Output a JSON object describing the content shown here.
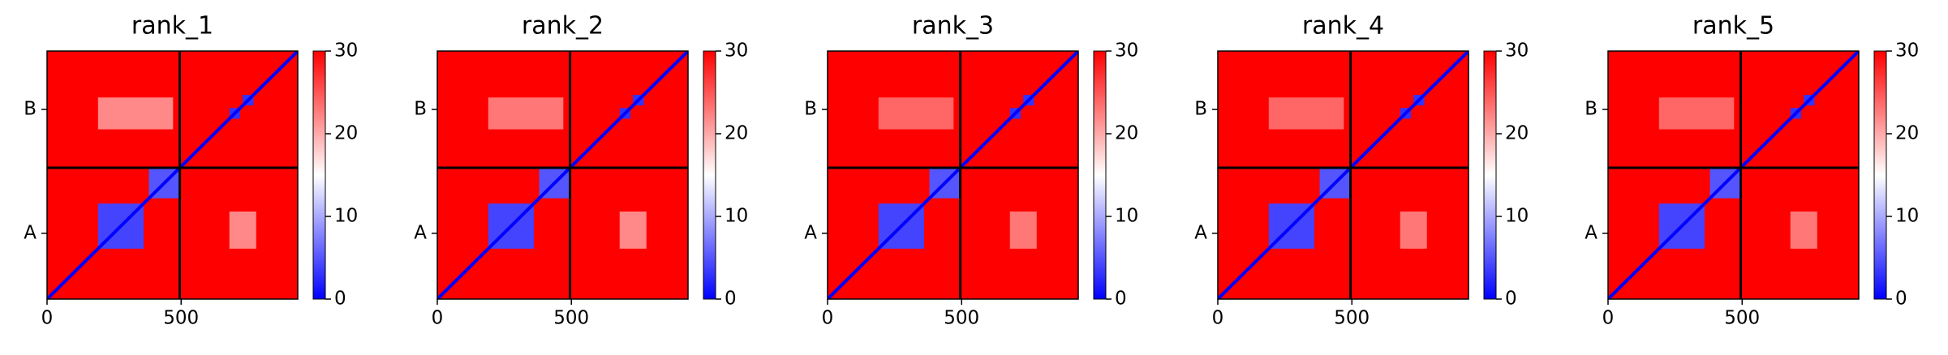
{
  "chart_data": [
    {
      "type": "heatmap",
      "title": "rank_1",
      "xlim": [
        0,
        935
      ],
      "ylim": [
        935,
        0
      ],
      "xticks": [
        0,
        500
      ],
      "yticks": [
        {
          "value": 248,
          "label": "A"
        },
        {
          "value": 715,
          "label": "B"
        }
      ],
      "clim": [
        0,
        30
      ],
      "cticks": [
        0,
        10,
        20,
        30
      ],
      "colors": [
        "#0000ff",
        "#ffffff",
        "#ff0000"
      ],
      "background_value": 30,
      "diagonal_value": 0,
      "chain_breaks": [
        495
      ],
      "blocks": [
        {
          "x": [
            190,
            360
          ],
          "y": [
            190,
            360
          ],
          "value": 4
        },
        {
          "x": [
            380,
            495
          ],
          "y": [
            380,
            495
          ],
          "value": 5
        },
        {
          "x": [
            190,
            470
          ],
          "y": [
            640,
            760
          ],
          "value": 22
        },
        {
          "x": [
            680,
            780
          ],
          "y": [
            190,
            330
          ],
          "value": 22
        },
        {
          "x": [
            680,
            720
          ],
          "y": [
            680,
            720
          ],
          "value": 3
        },
        {
          "x": [
            730,
            770
          ],
          "y": [
            730,
            770
          ],
          "value": 3
        }
      ]
    },
    {
      "type": "heatmap",
      "title": "rank_2",
      "xlim": [
        0,
        935
      ],
      "ylim": [
        935,
        0
      ],
      "xticks": [
        0,
        500
      ],
      "yticks": [
        {
          "value": 248,
          "label": "A"
        },
        {
          "value": 715,
          "label": "B"
        }
      ],
      "clim": [
        0,
        30
      ],
      "cticks": [
        0,
        10,
        20,
        30
      ],
      "colors": [
        "#0000ff",
        "#ffffff",
        "#ff0000"
      ],
      "background_value": 30,
      "diagonal_value": 0,
      "chain_breaks": [
        495
      ],
      "blocks": [
        {
          "x": [
            190,
            360
          ],
          "y": [
            190,
            360
          ],
          "value": 4
        },
        {
          "x": [
            380,
            495
          ],
          "y": [
            380,
            495
          ],
          "value": 5
        },
        {
          "x": [
            190,
            470
          ],
          "y": [
            640,
            760
          ],
          "value": 23
        },
        {
          "x": [
            680,
            780
          ],
          "y": [
            190,
            330
          ],
          "value": 22
        },
        {
          "x": [
            680,
            720
          ],
          "y": [
            680,
            720
          ],
          "value": 3
        },
        {
          "x": [
            730,
            770
          ],
          "y": [
            730,
            770
          ],
          "value": 3
        }
      ]
    },
    {
      "type": "heatmap",
      "title": "rank_3",
      "xlim": [
        0,
        935
      ],
      "ylim": [
        935,
        0
      ],
      "xticks": [
        0,
        500
      ],
      "yticks": [
        {
          "value": 248,
          "label": "A"
        },
        {
          "value": 715,
          "label": "B"
        }
      ],
      "clim": [
        0,
        30
      ],
      "cticks": [
        0,
        10,
        20,
        30
      ],
      "colors": [
        "#0000ff",
        "#ffffff",
        "#ff0000"
      ],
      "background_value": 30,
      "diagonal_value": 0,
      "chain_breaks": [
        495
      ],
      "blocks": [
        {
          "x": [
            190,
            360
          ],
          "y": [
            190,
            360
          ],
          "value": 4
        },
        {
          "x": [
            380,
            495
          ],
          "y": [
            380,
            495
          ],
          "value": 5
        },
        {
          "x": [
            190,
            470
          ],
          "y": [
            640,
            760
          ],
          "value": 24
        },
        {
          "x": [
            680,
            780
          ],
          "y": [
            190,
            330
          ],
          "value": 23
        },
        {
          "x": [
            680,
            720
          ],
          "y": [
            680,
            720
          ],
          "value": 3
        },
        {
          "x": [
            730,
            770
          ],
          "y": [
            730,
            770
          ],
          "value": 3
        }
      ]
    },
    {
      "type": "heatmap",
      "title": "rank_4",
      "xlim": [
        0,
        935
      ],
      "ylim": [
        935,
        0
      ],
      "xticks": [
        0,
        500
      ],
      "yticks": [
        {
          "value": 248,
          "label": "A"
        },
        {
          "value": 715,
          "label": "B"
        }
      ],
      "clim": [
        0,
        30
      ],
      "cticks": [
        0,
        10,
        20,
        30
      ],
      "colors": [
        "#0000ff",
        "#ffffff",
        "#ff0000"
      ],
      "background_value": 30,
      "diagonal_value": 0,
      "chain_breaks": [
        495
      ],
      "blocks": [
        {
          "x": [
            190,
            360
          ],
          "y": [
            190,
            360
          ],
          "value": 4
        },
        {
          "x": [
            380,
            495
          ],
          "y": [
            380,
            495
          ],
          "value": 5
        },
        {
          "x": [
            190,
            470
          ],
          "y": [
            640,
            760
          ],
          "value": 24
        },
        {
          "x": [
            680,
            780
          ],
          "y": [
            190,
            330
          ],
          "value": 23
        },
        {
          "x": [
            680,
            720
          ],
          "y": [
            680,
            720
          ],
          "value": 3
        },
        {
          "x": [
            730,
            770
          ],
          "y": [
            730,
            770
          ],
          "value": 3
        }
      ]
    },
    {
      "type": "heatmap",
      "title": "rank_5",
      "xlim": [
        0,
        935
      ],
      "ylim": [
        935,
        0
      ],
      "xticks": [
        0,
        500
      ],
      "yticks": [
        {
          "value": 248,
          "label": "A"
        },
        {
          "value": 715,
          "label": "B"
        }
      ],
      "clim": [
        0,
        30
      ],
      "cticks": [
        0,
        10,
        20,
        30
      ],
      "colors": [
        "#0000ff",
        "#ffffff",
        "#ff0000"
      ],
      "background_value": 30,
      "diagonal_value": 0,
      "chain_breaks": [
        495
      ],
      "blocks": [
        {
          "x": [
            190,
            360
          ],
          "y": [
            190,
            360
          ],
          "value": 4
        },
        {
          "x": [
            380,
            495
          ],
          "y": [
            380,
            495
          ],
          "value": 5
        },
        {
          "x": [
            190,
            470
          ],
          "y": [
            640,
            760
          ],
          "value": 24
        },
        {
          "x": [
            680,
            780
          ],
          "y": [
            190,
            330
          ],
          "value": 23
        },
        {
          "x": [
            680,
            720
          ],
          "y": [
            680,
            720
          ],
          "value": 3
        },
        {
          "x": [
            730,
            770
          ],
          "y": [
            730,
            770
          ],
          "value": 3
        }
      ]
    }
  ]
}
